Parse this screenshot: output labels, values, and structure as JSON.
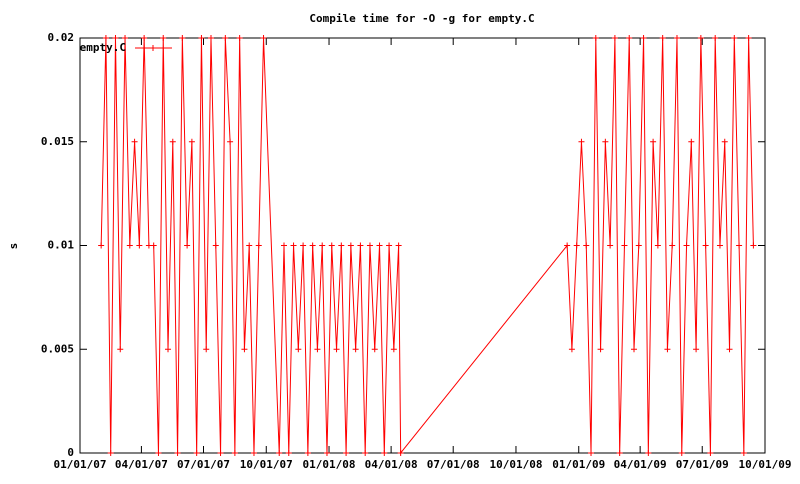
{
  "chart_data": {
    "type": "line",
    "title": "Compile time for -O -g for empty.C",
    "y_label": "s",
    "xlim": [
      "2007-01-01",
      "2009-10-01"
    ],
    "xticks": [
      {
        "value": "2007-01-01",
        "label": "01/01/07"
      },
      {
        "value": "2007-04-01",
        "label": "04/01/07"
      },
      {
        "value": "2007-07-01",
        "label": "07/01/07"
      },
      {
        "value": "2007-10-01",
        "label": "10/01/07"
      },
      {
        "value": "2008-01-01",
        "label": "01/01/08"
      },
      {
        "value": "2008-04-01",
        "label": "04/01/08"
      },
      {
        "value": "2008-07-01",
        "label": "07/01/08"
      },
      {
        "value": "2008-10-01",
        "label": "10/01/08"
      },
      {
        "value": "2009-01-01",
        "label": "01/01/09"
      },
      {
        "value": "2009-04-01",
        "label": "04/01/09"
      },
      {
        "value": "2009-07-01",
        "label": "07/01/09"
      },
      {
        "value": "2009-10-01",
        "label": "10/01/09"
      }
    ],
    "ylim": [
      0,
      0.02
    ],
    "yticks": [
      0,
      0.005,
      0.01,
      0.015,
      0.02
    ],
    "legend": "top-left",
    "x": [
      "2007-02-01",
      "2007-02-08",
      "2007-02-15",
      "2007-02-22",
      "2007-03-01",
      "2007-03-08",
      "2007-03-15",
      "2007-03-22",
      "2007-03-29",
      "2007-04-05",
      "2007-04-12",
      "2007-04-19",
      "2007-04-26",
      "2007-05-03",
      "2007-05-10",
      "2007-05-17",
      "2007-05-24",
      "2007-05-31",
      "2007-06-07",
      "2007-06-14",
      "2007-06-21",
      "2007-06-28",
      "2007-07-05",
      "2007-07-12",
      "2007-07-19",
      "2007-07-26",
      "2007-08-02",
      "2007-08-09",
      "2007-08-16",
      "2007-08-23",
      "2007-08-30",
      "2007-09-06",
      "2007-09-13",
      "2007-09-20",
      "2007-09-27",
      "2007-10-20",
      "2007-10-27",
      "2007-11-03",
      "2007-11-10",
      "2007-11-17",
      "2007-11-24",
      "2007-12-01",
      "2007-12-08",
      "2007-12-15",
      "2007-12-22",
      "2007-12-29",
      "2008-01-05",
      "2008-01-12",
      "2008-01-19",
      "2008-01-26",
      "2008-02-02",
      "2008-02-09",
      "2008-02-16",
      "2008-02-23",
      "2008-03-01",
      "2008-03-08",
      "2008-03-15",
      "2008-03-22",
      "2008-03-29",
      "2008-04-05",
      "2008-04-12",
      "2008-04-15",
      "2008-12-15",
      "2008-12-22",
      "2008-12-29",
      "2009-01-05",
      "2009-01-12",
      "2009-01-19",
      "2009-01-26",
      "2009-02-02",
      "2009-02-09",
      "2009-02-16",
      "2009-02-23",
      "2009-03-02",
      "2009-03-09",
      "2009-03-16",
      "2009-03-23",
      "2009-03-30",
      "2009-04-06",
      "2009-04-13",
      "2009-04-20",
      "2009-04-27",
      "2009-05-04",
      "2009-05-11",
      "2009-05-18",
      "2009-05-25",
      "2009-06-01",
      "2009-06-08",
      "2009-06-15",
      "2009-06-22",
      "2009-06-29",
      "2009-07-06",
      "2009-07-13",
      "2009-07-20",
      "2009-07-27",
      "2009-08-03",
      "2009-08-10",
      "2009-08-17",
      "2009-08-24",
      "2009-08-31",
      "2009-09-07",
      "2009-09-14"
    ],
    "series": [
      {
        "name": "empty.C",
        "color": "#ff0000",
        "values": [
          0.01,
          0.02,
          0,
          0.02,
          0.005,
          0.02,
          0.01,
          0.015,
          0.01,
          0.02,
          0.01,
          0.01,
          0,
          0.02,
          0.005,
          0.015,
          0,
          0.02,
          0.01,
          0.015,
          0,
          0.02,
          0.005,
          0.02,
          0.01,
          0,
          0.02,
          0.015,
          0,
          0.02,
          0.005,
          0.01,
          0,
          0.01,
          0.02,
          0,
          0.01,
          0,
          0.01,
          0.005,
          0.01,
          0,
          0.01,
          0.005,
          0.01,
          0,
          0.01,
          0.005,
          0.01,
          0,
          0.01,
          0.005,
          0.01,
          0,
          0.01,
          0.005,
          0.01,
          0,
          0.01,
          0.005,
          0.01,
          0,
          0.01,
          0.005,
          0.01,
          0.015,
          0.01,
          0,
          0.02,
          0.005,
          0.015,
          0.01,
          0.02,
          0,
          0.01,
          0.02,
          0.005,
          0.01,
          0.02,
          0,
          0.015,
          0.01,
          0.02,
          0.005,
          0.01,
          0.02,
          0,
          0.01,
          0.015,
          0.005,
          0.02,
          0.01,
          0,
          0.02,
          0.01,
          0.015,
          0.005,
          0.02,
          0.01,
          0,
          0.02,
          0.01
        ]
      }
    ]
  }
}
